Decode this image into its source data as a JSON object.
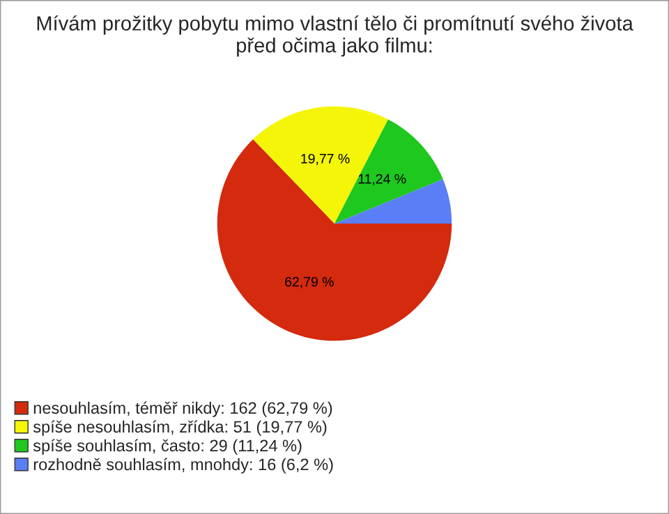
{
  "chart_data": {
    "type": "pie",
    "title": "Mívám prožitky pobytu mimo vlastní tělo či promítnutí svého života\npřed očima jako filmu:",
    "categories": [
      "nesouhlasím, téměř nikdy: 162 (62,79 %)",
      "spíše nesouhlasím, zřídka: 51 (19,77 %)",
      "spíše souhlasím, často: 29 (11,24 %)",
      "rozhodně souhlasím, mnohdy: 16 (6,2 %)"
    ],
    "values": [
      62.79,
      19.77,
      11.24,
      6.2
    ],
    "colors": [
      "#d42a0e",
      "#f5f50a",
      "#1ec81e",
      "#5a7ef5"
    ],
    "value_labels": [
      "62,79 %",
      "19,77 %",
      "11,24 %",
      null
    ],
    "legend": "bottom left"
  }
}
